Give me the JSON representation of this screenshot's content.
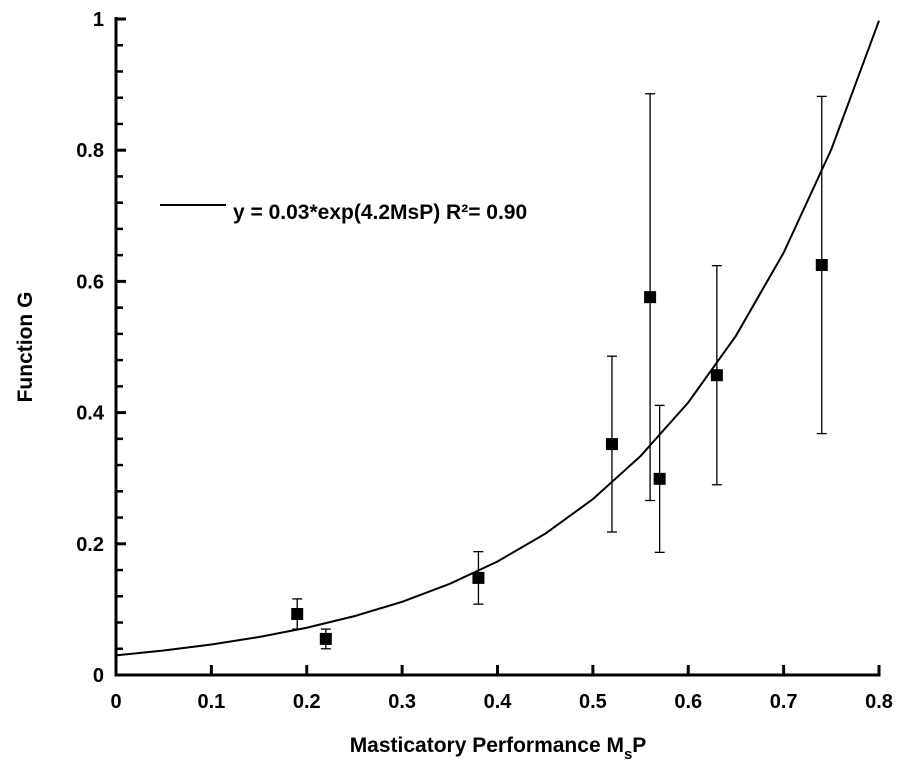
{
  "chart_data": {
    "type": "scatter",
    "xlabel_parts": [
      "Masticatory Performance M",
      "s",
      "P"
    ],
    "ylabel": "Function G",
    "xlim": [
      0,
      0.8
    ],
    "ylim": [
      0,
      1
    ],
    "xticks": [
      0,
      0.1,
      0.2,
      0.3,
      0.4,
      0.5,
      0.6,
      0.7,
      0.8
    ],
    "yticks": [
      0,
      0.2,
      0.4,
      0.6,
      0.8,
      1
    ],
    "yminor": [
      0.04,
      0.08,
      0.12,
      0.16,
      0.24,
      0.28,
      0.32,
      0.36,
      0.44,
      0.48,
      0.52,
      0.56,
      0.64,
      0.68,
      0.72,
      0.76,
      0.84,
      0.88,
      0.92,
      0.96
    ],
    "series": [
      {
        "color": "#000000",
        "marker": "square",
        "x": [
          0.19,
          0.22,
          0.38,
          0.52,
          0.56,
          0.57,
          0.63,
          0.74
        ],
        "values": [
          0.093,
          0.055,
          0.148,
          0.352,
          0.576,
          0.299,
          0.457,
          0.625
        ],
        "errors": [
          0.023,
          0.015,
          0.04,
          0.134,
          0.31,
          0.112,
          0.167,
          0.257
        ]
      },
      {
        "name": "y = 0.03*exp(4.2MsP)   R²= 0.90",
        "color": "#000000",
        "line": true,
        "x": [
          0,
          0.05,
          0.1,
          0.15,
          0.2,
          0.25,
          0.3,
          0.35,
          0.4,
          0.45,
          0.5,
          0.55,
          0.6,
          0.65,
          0.7,
          0.75,
          0.8
        ],
        "values": [
          0.03,
          0.0373,
          0.0465,
          0.0579,
          0.072,
          0.0897,
          0.1116,
          0.139,
          0.173,
          0.2153,
          0.2681,
          0.3337,
          0.4154,
          0.5171,
          0.6436,
          0.8012,
          0.9974
        ]
      }
    ]
  }
}
